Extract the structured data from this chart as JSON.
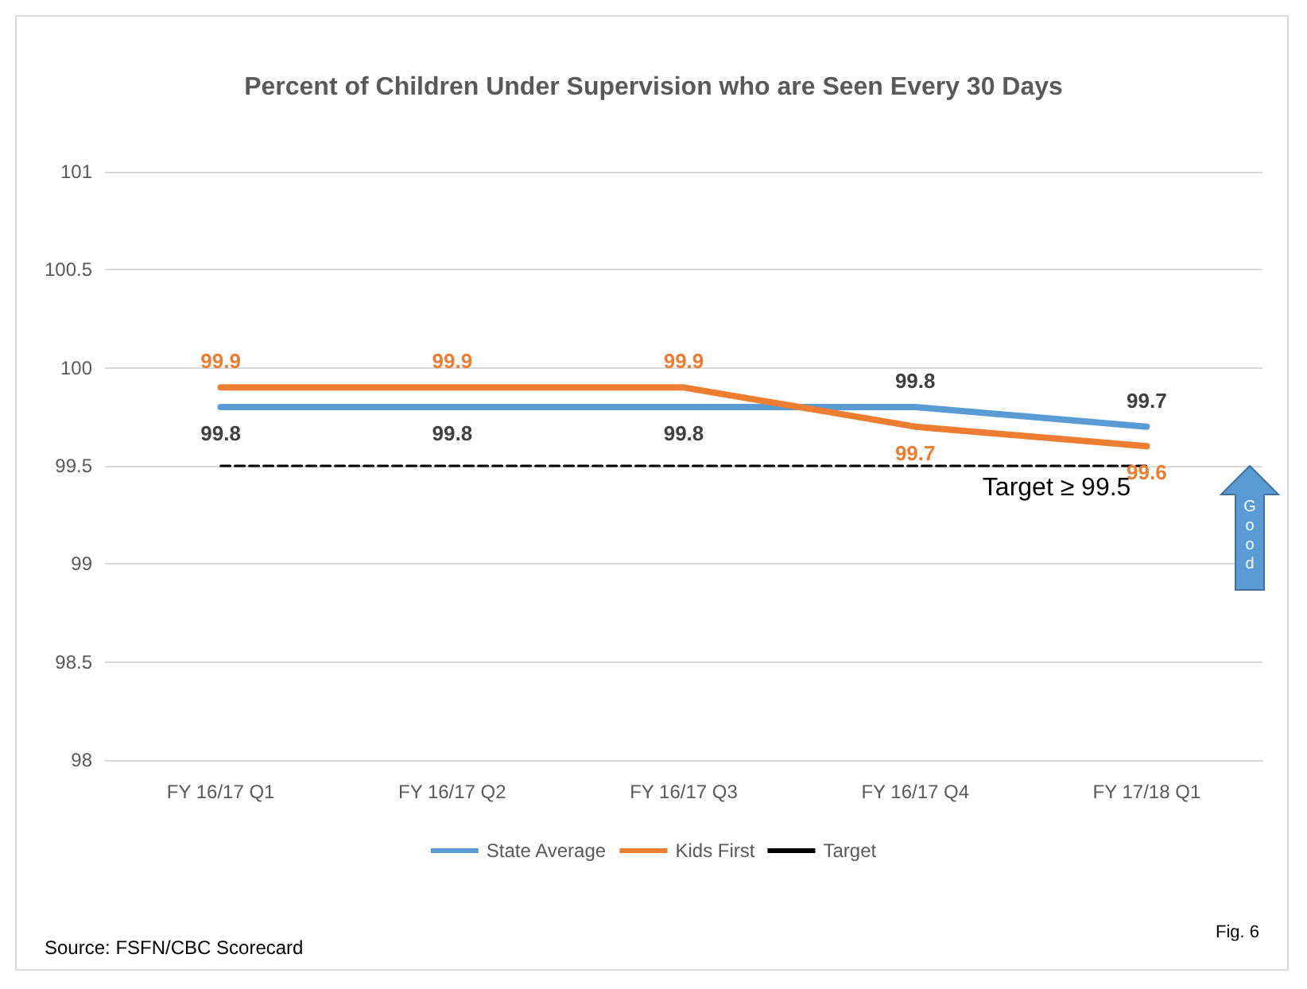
{
  "chart_data": {
    "type": "line",
    "title": "Percent of Children Under Supervision who are Seen Every 30 Days",
    "categories": [
      "FY 16/17 Q1",
      "FY 16/17 Q2",
      "FY 16/17 Q3",
      "FY 16/17 Q4",
      "FY 17/18 Q1"
    ],
    "series": [
      {
        "name": "State Average",
        "color": "#5b9bd5",
        "values": [
          99.8,
          99.8,
          99.8,
          99.8,
          99.7
        ],
        "value_labels": [
          "99.8",
          "99.8",
          "99.8",
          "99.8",
          "99.7"
        ]
      },
      {
        "name": "Kids First",
        "color": "#ed7d31",
        "values": [
          99.9,
          99.9,
          99.9,
          99.7,
          99.6
        ],
        "value_labels": [
          "99.9",
          "99.9",
          "99.9",
          "99.7",
          "99.6"
        ]
      },
      {
        "name": "Target",
        "color": "#000000",
        "values": [
          99.5,
          99.5,
          99.5,
          99.5,
          99.5
        ],
        "line_style": "dashed"
      }
    ],
    "ylim": [
      98,
      101
    ],
    "yticks": [
      98,
      98.5,
      99,
      99.5,
      100,
      100.5,
      101
    ],
    "grid": "y",
    "legend": "bottom",
    "marker": "none",
    "line_style": "solid",
    "annotations": [
      {
        "text": "Target ≥ 99.5",
        "x": "FY 17/18 Q1",
        "y": 99.5
      },
      "Good",
      "Source: FSFN/CBC Scorecard",
      "Fig. 6"
    ]
  }
}
